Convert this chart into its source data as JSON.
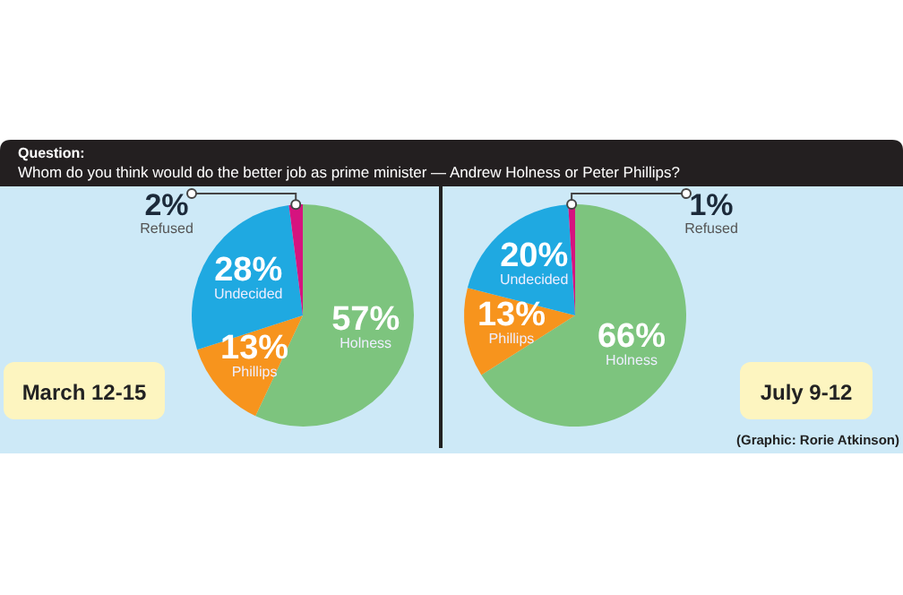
{
  "chart_data": [
    {
      "type": "pie",
      "title": "Question:",
      "subtitle": "Whom do you think would do the better job as prime minister — Andrew Holness or Peter Phillips?",
      "categories": [
        "Holness",
        "Phillips",
        "Undecided",
        "Refused"
      ],
      "values": [
        57,
        13,
        28,
        2
      ],
      "value_labels": [
        "57%",
        "13%",
        "28%",
        "2%"
      ],
      "colors": [
        "#7dc47e",
        "#f7941d",
        "#1fa9e1",
        "#d6137f"
      ],
      "annotations": [
        "March 12-15"
      ]
    },
    {
      "type": "pie",
      "categories": [
        "Holness",
        "Phillips",
        "Undecided",
        "Refused"
      ],
      "values": [
        66,
        13,
        20,
        1
      ],
      "value_labels": [
        "66%",
        "13%",
        "20%",
        "1%"
      ],
      "colors": [
        "#7dc47e",
        "#f7941d",
        "#1fa9e1",
        "#d6137f"
      ],
      "annotations": [
        "July 9-12",
        "(Graphic: Rorie Atkinson)"
      ]
    }
  ]
}
